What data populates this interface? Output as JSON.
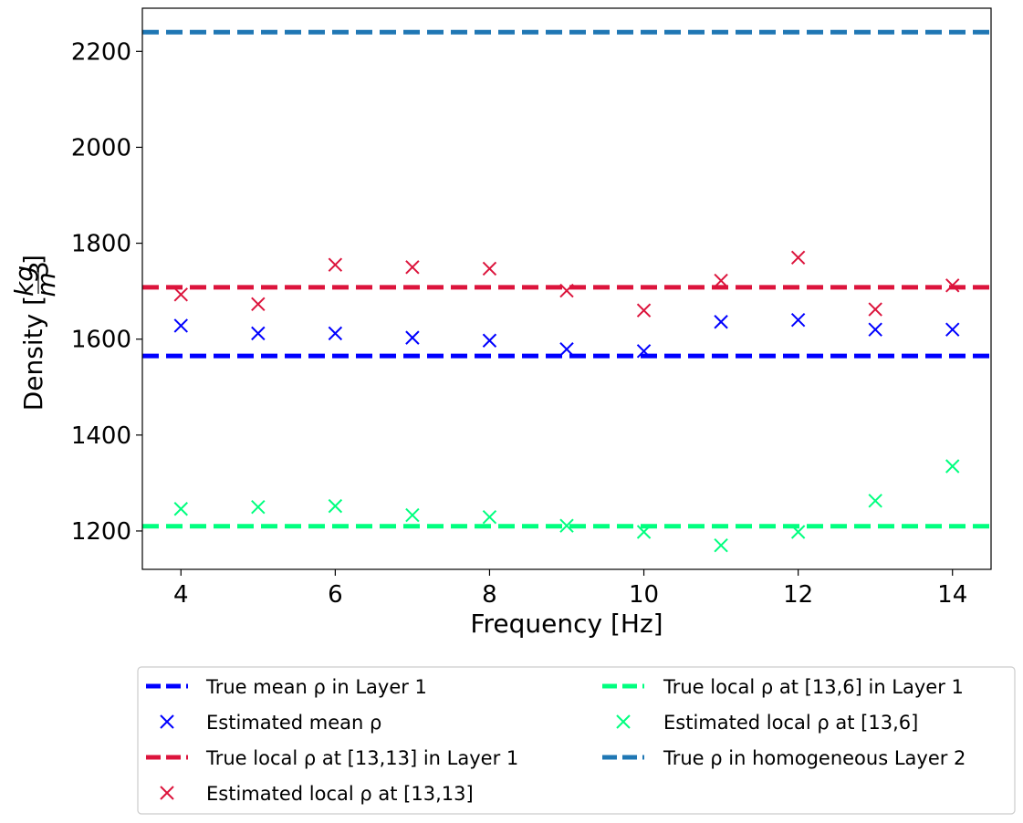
{
  "chart_data": {
    "type": "line",
    "title": "",
    "xlabel": "Frequency [Hz]",
    "ylabel_text": "Density [",
    "ylabel_unit_num": "kg",
    "ylabel_unit_den": "m",
    "ylabel_unit_exp": "3",
    "ylabel_close": "]",
    "xlim": [
      3.5,
      14.5
    ],
    "ylim": [
      1120,
      2290
    ],
    "xticks": [
      4,
      6,
      8,
      10,
      12,
      14
    ],
    "yticks": [
      1200,
      1400,
      1600,
      1800,
      2000,
      2200
    ],
    "grid": false,
    "legend_position": "below plot, two columns",
    "x": [
      4,
      5,
      6,
      7,
      8,
      9,
      10,
      11,
      12,
      13,
      14
    ],
    "series": [
      {
        "name": "True mean ρ in Layer 1",
        "kind": "hline",
        "value": 1565,
        "color": "#0000ff"
      },
      {
        "name": "Estimated mean ρ",
        "kind": "scatter",
        "color": "#0000ff",
        "values": [
          1628,
          1612,
          1612,
          1603,
          1597,
          1579,
          1575,
          1636,
          1640,
          1620,
          1620
        ]
      },
      {
        "name": "True local ρ at [13,13] in Layer 1",
        "kind": "hline",
        "value": 1708,
        "color": "#dc143c"
      },
      {
        "name": "Estimated local ρ at [13,13]",
        "kind": "scatter",
        "color": "#dc143c",
        "values": [
          1693,
          1673,
          1755,
          1750,
          1747,
          1701,
          1660,
          1722,
          1770,
          1662,
          1712
        ]
      },
      {
        "name": "True local ρ at [13,6] in Layer 1",
        "kind": "hline",
        "value": 1210,
        "color": "#00ff7f"
      },
      {
        "name": "Estimated local ρ at [13,6]",
        "kind": "scatter",
        "color": "#00ff7f",
        "values": [
          1246,
          1250,
          1252,
          1233,
          1229,
          1211,
          1198,
          1170,
          1198,
          1263,
          1335
        ]
      },
      {
        "name": "True ρ in homogeneous Layer 2",
        "kind": "hline",
        "value": 2240,
        "color": "#1f77b4"
      }
    ]
  }
}
